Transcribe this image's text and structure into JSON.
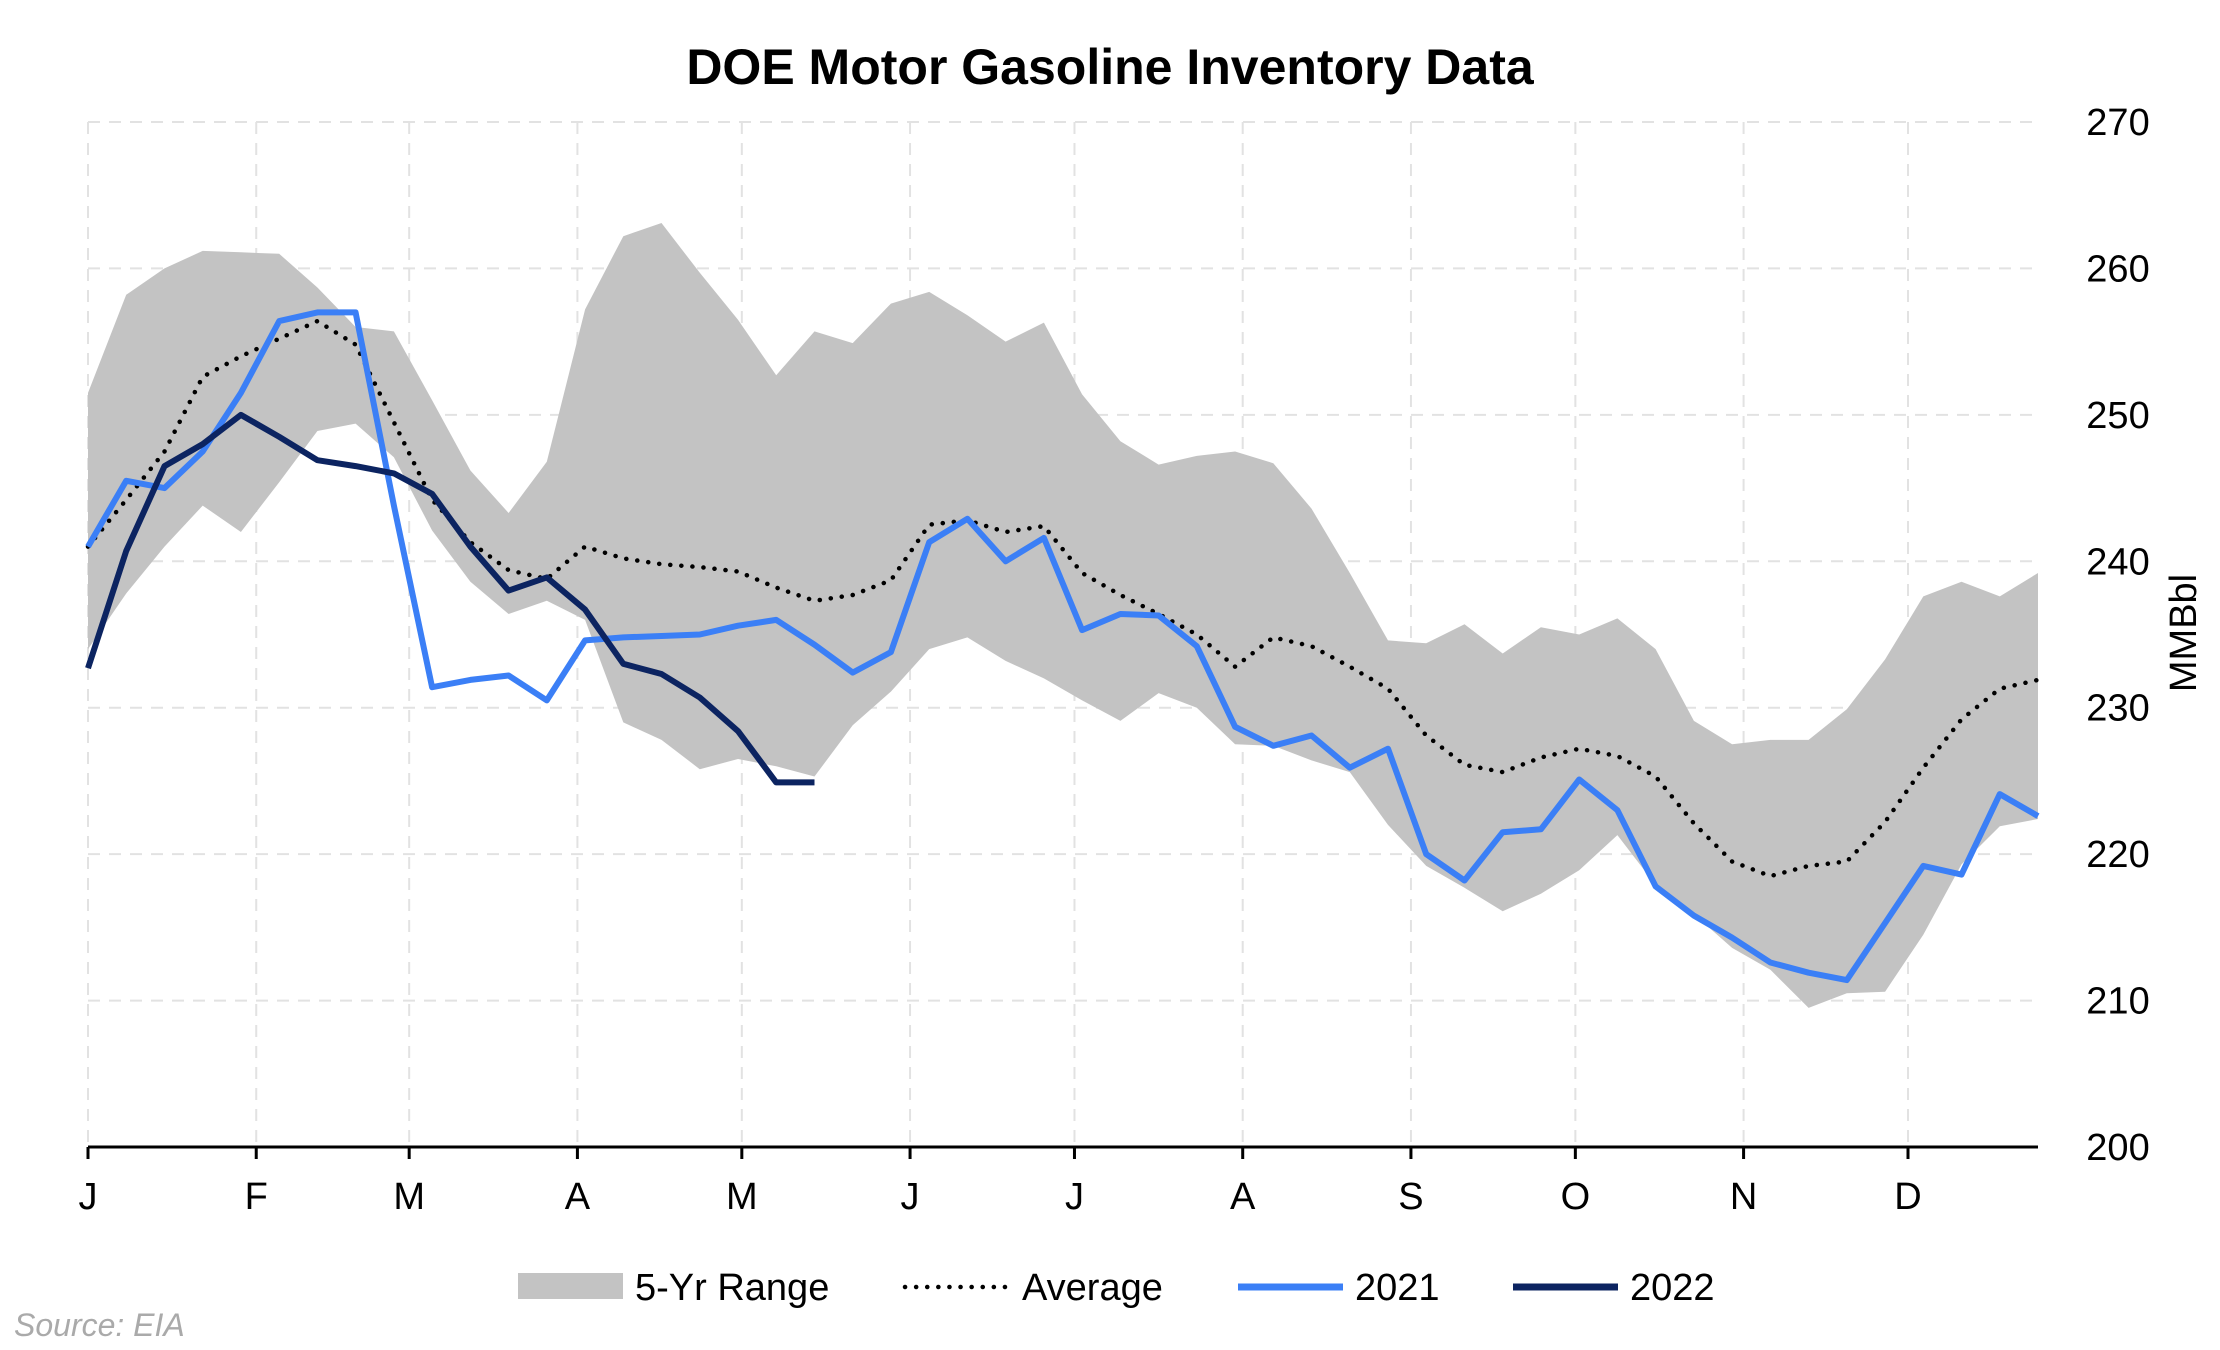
{
  "chart_data": {
    "type": "line",
    "title": "DOE Motor Gasoline Inventory Data",
    "ylabel": "MMBbl",
    "xlabel": "",
    "ylim": [
      200,
      270
    ],
    "yticks": [
      "200",
      "210",
      "220",
      "230",
      "240",
      "250",
      "260",
      "270"
    ],
    "ytick_values": [
      200,
      210,
      220,
      230,
      240,
      250,
      260,
      270
    ],
    "x_range_weeks": [
      1,
      52
    ],
    "month_ticks": [
      {
        "label": "J",
        "week": 1
      },
      {
        "label": "F",
        "week": 5.4
      },
      {
        "label": "M",
        "week": 9.4
      },
      {
        "label": "A",
        "week": 13.8
      },
      {
        "label": "M",
        "week": 18.1
      },
      {
        "label": "J",
        "week": 22.5
      },
      {
        "label": "J",
        "week": 26.8
      },
      {
        "label": "A",
        "week": 31.2
      },
      {
        "label": "S",
        "week": 35.6
      },
      {
        "label": "O",
        "week": 39.9
      },
      {
        "label": "N",
        "week": 44.3
      },
      {
        "label": "D",
        "week": 48.6
      }
    ],
    "grid": true,
    "legend_position": "bottom",
    "range": {
      "name": "5-Yr Range",
      "color": "#c3c3c3",
      "high": [
        251.5,
        258.2,
        260.0,
        261.2,
        261.1,
        261.0,
        258.7,
        256.0,
        255.7,
        251.0,
        246.2,
        243.3,
        246.8,
        257.2,
        262.2,
        263.1,
        259.7,
        256.5,
        252.7,
        255.7,
        254.9,
        257.6,
        258.4,
        256.8,
        255.0,
        256.3,
        251.4,
        248.2,
        246.6,
        247.2,
        247.5,
        246.7,
        243.6,
        239.2,
        234.6,
        234.4,
        235.7,
        233.7,
        235.5,
        235.0,
        236.1,
        234.0,
        229.1,
        227.5,
        227.8,
        227.8,
        229.9,
        233.3,
        237.6,
        238.6,
        237.6,
        239.2
      ],
      "low": [
        234.0,
        237.8,
        241.0,
        243.8,
        242.0,
        245.4,
        248.9,
        249.4,
        247.1,
        242.1,
        238.6,
        236.4,
        237.3,
        236.0,
        229.0,
        227.8,
        225.8,
        226.5,
        226.0,
        225.3,
        228.8,
        231.1,
        234.0,
        234.8,
        233.2,
        232.0,
        230.5,
        229.1,
        231.0,
        230.0,
        227.5,
        227.4,
        226.4,
        225.6,
        222.0,
        219.2,
        217.7,
        216.1,
        217.3,
        218.9,
        221.3,
        217.9,
        215.9,
        213.6,
        212.1,
        209.5,
        210.5,
        210.6,
        214.5,
        219.3,
        221.9,
        222.4
      ]
    },
    "series": [
      {
        "name": "Average",
        "color": "#000000",
        "style": "dotted",
        "values": [
          241.0,
          244.2,
          247.5,
          252.6,
          254.0,
          255.2,
          256.4,
          254.8,
          249.5,
          244.2,
          241.3,
          239.4,
          238.8,
          241.0,
          240.2,
          239.8,
          239.6,
          239.3,
          238.2,
          237.3,
          237.7,
          238.7,
          242.5,
          242.8,
          242.0,
          242.4,
          239.2,
          237.7,
          236.4,
          235.0,
          232.8,
          234.8,
          234.2,
          232.8,
          231.3,
          228.1,
          226.1,
          225.6,
          226.6,
          227.2,
          226.7,
          225.3,
          222.1,
          219.5,
          218.5,
          219.2,
          219.5,
          222.2,
          225.9,
          229.2,
          231.3,
          231.9
        ]
      },
      {
        "name": "2021",
        "color": "#3b7ff6",
        "style": "solid",
        "values": [
          241.0,
          245.5,
          245.0,
          247.5,
          251.5,
          256.4,
          257.0,
          257.0,
          243.8,
          231.4,
          231.9,
          232.2,
          230.5,
          234.6,
          234.8,
          234.9,
          235.0,
          235.6,
          236.0,
          234.3,
          232.4,
          233.8,
          241.3,
          242.9,
          240.0,
          241.6,
          235.3,
          236.4,
          236.3,
          234.2,
          228.7,
          227.4,
          228.1,
          225.9,
          227.2,
          220.0,
          218.2,
          221.5,
          221.7,
          225.1,
          223.0,
          217.8,
          215.8,
          214.3,
          212.6,
          211.9,
          211.4,
          215.3,
          219.2,
          218.6,
          224.1,
          222.6
        ]
      },
      {
        "name": "2022",
        "color": "#0c2461",
        "style": "solid",
        "values": [
          232.7,
          240.7,
          246.5,
          248.0,
          250.0,
          248.5,
          246.9,
          246.5,
          246.0,
          244.6,
          241.0,
          238.0,
          238.9,
          236.7,
          233.0,
          232.3,
          230.7,
          228.4,
          224.9,
          224.9
        ]
      }
    ]
  },
  "source": "Source: EIA"
}
